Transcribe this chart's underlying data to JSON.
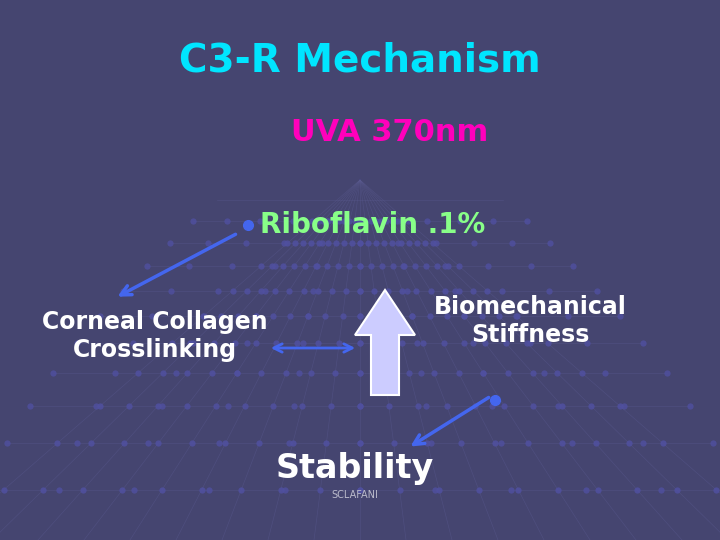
{
  "title": "C3-R Mechanism",
  "title_color": "#00E5FF",
  "title_fontsize": 28,
  "uva_text": "UVA 370nm",
  "uva_color": "#FF00BB",
  "uva_fontsize": 22,
  "riboflavin_text": "Riboflavin .1%",
  "riboflavin_color": "#88FF88",
  "riboflavin_fontsize": 20,
  "corneal_text": "Corneal Collagen\nCrosslinking",
  "corneal_color": "#FFFFFF",
  "corneal_fontsize": 17,
  "biomech_text": "Biomechanical\nStiffness",
  "biomech_color": "#FFFFFF",
  "biomech_fontsize": 17,
  "stability_text": "Stability",
  "stability_color": "#FFFFFF",
  "stability_fontsize": 24,
  "sclafani_text": "SCLAFANI",
  "sclafani_color": "#BBBBCC",
  "sclafani_fontsize": 7,
  "bg_color": "#454570",
  "grid_line_color": "#5A5A90",
  "dot_color": "#5050A0",
  "arrow_color": "#4466EE",
  "up_arrow_face": "#CCCCFF",
  "up_arrow_edge": "#FFFFFF"
}
